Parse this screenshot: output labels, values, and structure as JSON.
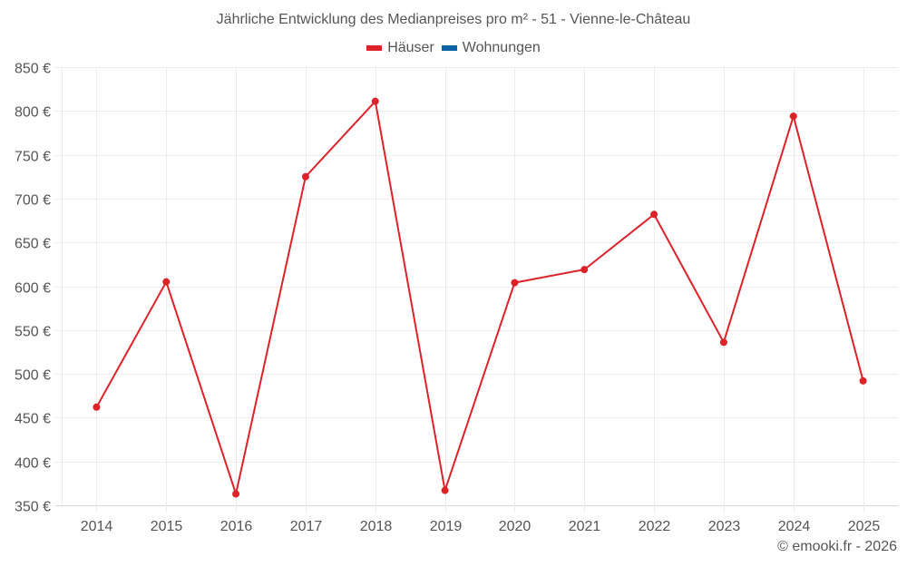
{
  "chart": {
    "title": "Jährliche Entwicklung des Medianpreises pro m² - 51 - Vienne-le-Château",
    "credit": "© emooki.fr - 2026",
    "legend": [
      {
        "label": "Häuser",
        "color": "#dd2228"
      },
      {
        "label": "Wohnungen",
        "color": "#0b62a4"
      }
    ]
  },
  "chart_data": {
    "type": "line",
    "title": "Jährliche Entwicklung des Medianpreises pro m² - 51 - Vienne-le-Château",
    "xlabel": "",
    "ylabel": "",
    "categories": [
      "2014",
      "2015",
      "2016",
      "2017",
      "2018",
      "2019",
      "2020",
      "2021",
      "2022",
      "2023",
      "2024",
      "2025"
    ],
    "series": [
      {
        "name": "Häuser",
        "color": "#dd2228",
        "values": [
          462,
          605,
          363,
          725,
          811,
          367,
          604,
          619,
          682,
          536,
          794,
          492
        ]
      },
      {
        "name": "Wohnungen",
        "color": "#0b62a4",
        "values": []
      }
    ],
    "ylim": [
      350,
      850
    ],
    "yticks": [
      350,
      400,
      450,
      500,
      550,
      600,
      650,
      700,
      750,
      800,
      850
    ],
    "ytick_suffix": " €",
    "grid": true,
    "legend_position": "top"
  }
}
